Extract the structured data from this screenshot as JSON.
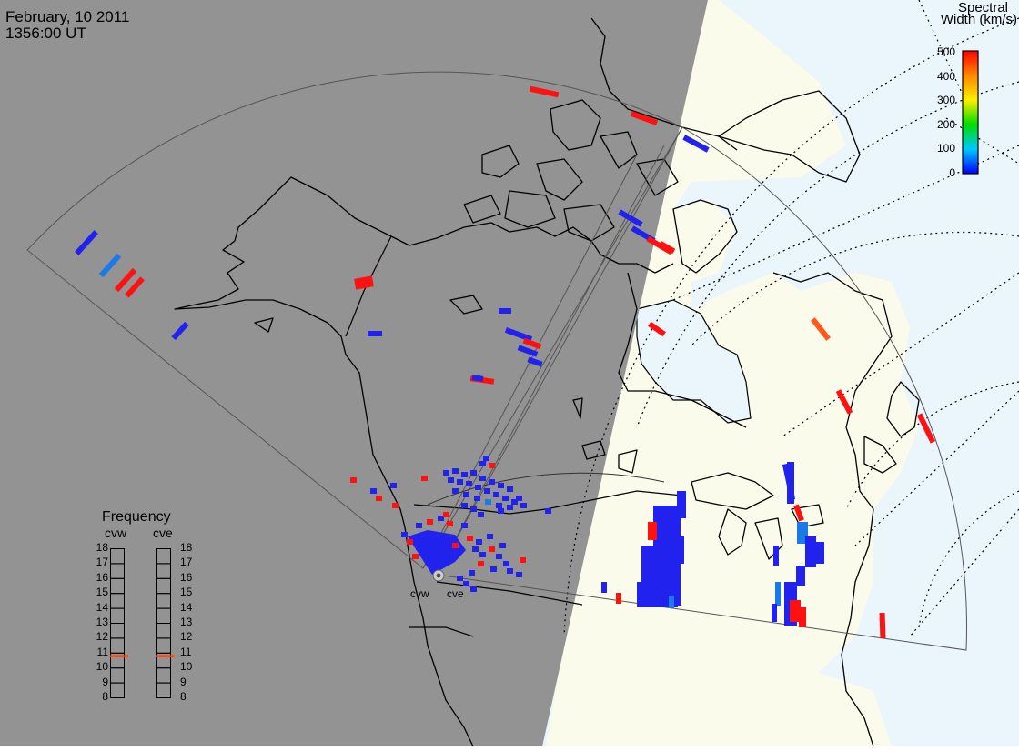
{
  "header": {
    "date": "February, 10 2011",
    "time": "1356:00 UT"
  },
  "colorbar": {
    "title_line1": "Spectral",
    "title_line2": "Width (km/s)",
    "ticks": [
      "500",
      "400",
      "300",
      "200",
      "100",
      "0"
    ],
    "min": 0,
    "max": 500
  },
  "frequency": {
    "title": "Frequency",
    "radars": [
      {
        "name": "cvw",
        "value": 10.8
      },
      {
        "name": "cve",
        "value": 10.8
      }
    ],
    "ticks": [
      "18",
      "17",
      "16",
      "15",
      "14",
      "13",
      "12",
      "11",
      "10",
      "9",
      "8"
    ],
    "marker_color": "#ff4500"
  },
  "stations": [
    {
      "name": "cvw"
    },
    {
      "name": "cve"
    }
  ],
  "colors": {
    "night": "#939393",
    "day_land": "#fbfbec",
    "day_ocean": "#eaf5fc",
    "low_width": "#2222ee",
    "high_width": "#ff1111"
  }
}
